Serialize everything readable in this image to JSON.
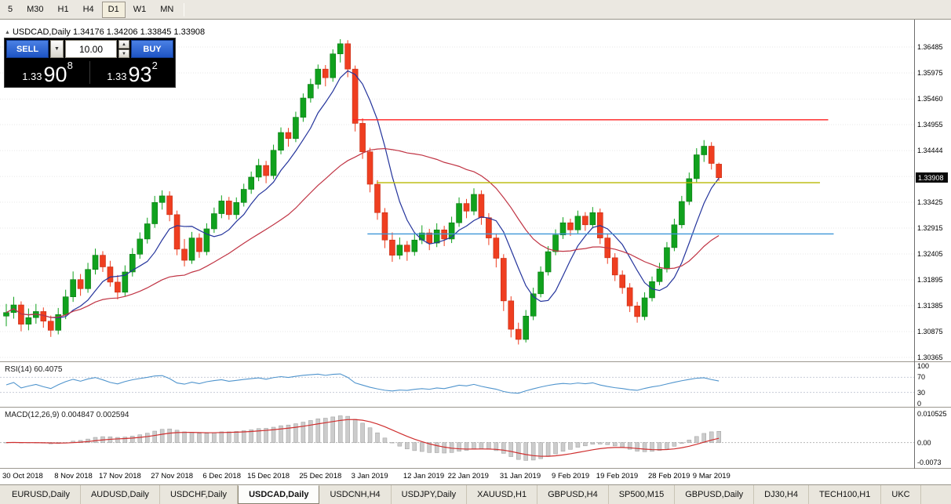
{
  "icons": {
    "title_marker": "▲",
    "dropdown": "▼",
    "spin_up": "▲",
    "spin_down": "▼"
  },
  "toolbar": {
    "timeframes": [
      {
        "label": "5",
        "active": false
      },
      {
        "label": "M30",
        "active": false
      },
      {
        "label": "H1",
        "active": false
      },
      {
        "label": "H4",
        "active": false
      },
      {
        "label": "D1",
        "active": true
      },
      {
        "label": "W1",
        "active": false
      },
      {
        "label": "MN",
        "active": false
      }
    ]
  },
  "chart_header": {
    "title": "USDCAD,Daily 1.34176 1.34206 1.33845 1.33908"
  },
  "trade_panel": {
    "sell_label": "SELL",
    "buy_label": "BUY",
    "volume": "10.00",
    "sell_price": {
      "prefix": "1.33",
      "big": "90",
      "sup": "8"
    },
    "buy_price": {
      "prefix": "1.33",
      "big": "93",
      "sup": "2"
    }
  },
  "price_scale": {
    "labels": [
      "1.36485",
      "1.35975",
      "1.35460",
      "1.34955",
      "1.34444",
      "1.33934",
      "1.33425",
      "1.32915",
      "1.32405",
      "1.31895",
      "1.31385",
      "1.30875",
      "1.30365"
    ],
    "current": "1.33908"
  },
  "rsi_panel": {
    "label": "RSI(14) 60.4075",
    "levels": [
      "100",
      "70",
      "30",
      "0"
    ],
    "color": "#4f94cd"
  },
  "macd_panel": {
    "label": "MACD(12,26,9) 0.004847 0.002594",
    "levels": [
      "0.010525",
      "0.00",
      "-0.0073"
    ],
    "max": 0.010525,
    "min": -0.0073
  },
  "time_axis": [
    {
      "i": 0,
      "label": "30 Oct 2018"
    },
    {
      "i": 7,
      "label": "8 Nov 2018"
    },
    {
      "i": 13,
      "label": "17 Nov 2018"
    },
    {
      "i": 20,
      "label": "27 Nov 2018"
    },
    {
      "i": 27,
      "label": "6 Dec 2018"
    },
    {
      "i": 33,
      "label": "15 Dec 2018"
    },
    {
      "i": 40,
      "label": "25 Dec 2018"
    },
    {
      "i": 47,
      "label": "3 Jan 2019"
    },
    {
      "i": 54,
      "label": "12 Jan 2019"
    },
    {
      "i": 60,
      "label": "22 Jan 2019"
    },
    {
      "i": 67,
      "label": "31 Jan 2019"
    },
    {
      "i": 74,
      "label": "9 Feb 2019"
    },
    {
      "i": 80,
      "label": "19 Feb 2019"
    },
    {
      "i": 87,
      "label": "28 Feb 2019"
    },
    {
      "i": 93,
      "label": "9 Mar 2019"
    }
  ],
  "chart_data": {
    "type": "candlestick",
    "title": "USDCAD,Daily",
    "last_ohlc": {
      "open": 1.34176,
      "high": 1.34206,
      "low": 1.33845,
      "close": 1.33908
    },
    "y_range": [
      1.30365,
      1.36485
    ],
    "bull_color": "#10a11d",
    "bear_color": "#ef3e20",
    "ma_fast": {
      "period": 7,
      "color": "#24349c"
    },
    "ma_slow": {
      "period": 25,
      "color": "#c03444"
    },
    "hlines": [
      {
        "price": 1.3505,
        "color": "#ff1e1e",
        "start_frac": 0.386,
        "end_frac": 0.906
      },
      {
        "price": 1.3381,
        "color": "#b8b800",
        "start_frac": 0.412,
        "end_frac": 0.897
      },
      {
        "price": 1.328,
        "color": "#3d96d8",
        "start_frac": 0.402,
        "end_frac": 0.912
      }
    ],
    "candles": [
      [
        1.3118,
        1.3142,
        1.3098,
        1.3125
      ],
      [
        1.3125,
        1.3156,
        1.3113,
        1.314
      ],
      [
        1.314,
        1.3147,
        1.3088,
        1.3102
      ],
      [
        1.3102,
        1.3133,
        1.309,
        1.3115
      ],
      [
        1.3115,
        1.3142,
        1.3103,
        1.3127
      ],
      [
        1.3127,
        1.3135,
        1.3095,
        1.3108
      ],
      [
        1.3108,
        1.3119,
        1.3077,
        1.309
      ],
      [
        1.309,
        1.3134,
        1.3082,
        1.3121
      ],
      [
        1.3121,
        1.317,
        1.3112,
        1.3156
      ],
      [
        1.3156,
        1.3206,
        1.3146,
        1.319
      ],
      [
        1.319,
        1.3201,
        1.3158,
        1.3172
      ],
      [
        1.3172,
        1.3223,
        1.3164,
        1.321
      ],
      [
        1.321,
        1.3251,
        1.32,
        1.3238
      ],
      [
        1.3238,
        1.3246,
        1.3205,
        1.3215
      ],
      [
        1.3215,
        1.3227,
        1.3176,
        1.3185
      ],
      [
        1.3185,
        1.3199,
        1.3151,
        1.3165
      ],
      [
        1.3165,
        1.3218,
        1.3157,
        1.3205
      ],
      [
        1.3205,
        1.3252,
        1.3196,
        1.324
      ],
      [
        1.324,
        1.3283,
        1.3231,
        1.327
      ],
      [
        1.327,
        1.3312,
        1.3261,
        1.33
      ],
      [
        1.33,
        1.3355,
        1.3292,
        1.3342
      ],
      [
        1.3342,
        1.3366,
        1.3328,
        1.3355
      ],
      [
        1.3355,
        1.3364,
        1.3305,
        1.3318
      ],
      [
        1.3318,
        1.3326,
        1.3238,
        1.325
      ],
      [
        1.325,
        1.327,
        1.3216,
        1.3228
      ],
      [
        1.3228,
        1.3284,
        1.3221,
        1.3272
      ],
      [
        1.3272,
        1.3281,
        1.3233,
        1.3245
      ],
      [
        1.3245,
        1.3301,
        1.3238,
        1.329
      ],
      [
        1.329,
        1.3332,
        1.3282,
        1.332
      ],
      [
        1.332,
        1.3356,
        1.3311,
        1.3345
      ],
      [
        1.3345,
        1.3353,
        1.3308,
        1.3318
      ],
      [
        1.3318,
        1.3352,
        1.3309,
        1.3342
      ],
      [
        1.3342,
        1.3379,
        1.3334,
        1.3368
      ],
      [
        1.3368,
        1.3403,
        1.3359,
        1.3392
      ],
      [
        1.3392,
        1.3428,
        1.3384,
        1.3415
      ],
      [
        1.3415,
        1.3424,
        1.338,
        1.3395
      ],
      [
        1.3395,
        1.3456,
        1.3388,
        1.3445
      ],
      [
        1.3445,
        1.349,
        1.3437,
        1.348
      ],
      [
        1.348,
        1.3489,
        1.3452,
        1.3468
      ],
      [
        1.3468,
        1.3521,
        1.3461,
        1.351
      ],
      [
        1.351,
        1.3557,
        1.3501,
        1.3548
      ],
      [
        1.3548,
        1.3586,
        1.3539,
        1.3575
      ],
      [
        1.3575,
        1.3614,
        1.3566,
        1.3605
      ],
      [
        1.3605,
        1.3613,
        1.3571,
        1.3588
      ],
      [
        1.3588,
        1.3644,
        1.358,
        1.3635
      ],
      [
        1.3635,
        1.3664,
        1.3618,
        1.3655
      ],
      [
        1.3655,
        1.3662,
        1.3589,
        1.3605
      ],
      [
        1.3605,
        1.3612,
        1.3482,
        1.3498
      ],
      [
        1.3498,
        1.3508,
        1.3428,
        1.3442
      ],
      [
        1.3442,
        1.345,
        1.3362,
        1.3378
      ],
      [
        1.3378,
        1.3386,
        1.3308,
        1.3322
      ],
      [
        1.3322,
        1.3331,
        1.3252,
        1.3268
      ],
      [
        1.3268,
        1.3283,
        1.3225,
        1.3238
      ],
      [
        1.3238,
        1.3273,
        1.323,
        1.3258
      ],
      [
        1.3258,
        1.3266,
        1.3227,
        1.3245
      ],
      [
        1.3245,
        1.3281,
        1.3237,
        1.3268
      ],
      [
        1.3268,
        1.3297,
        1.326,
        1.3282
      ],
      [
        1.3282,
        1.329,
        1.3248,
        1.3262
      ],
      [
        1.3262,
        1.3301,
        1.3254,
        1.3288
      ],
      [
        1.3288,
        1.3296,
        1.3256,
        1.327
      ],
      [
        1.327,
        1.3314,
        1.3262,
        1.3302
      ],
      [
        1.3302,
        1.3352,
        1.3294,
        1.334
      ],
      [
        1.334,
        1.3349,
        1.3311,
        1.3325
      ],
      [
        1.3325,
        1.337,
        1.3317,
        1.3358
      ],
      [
        1.3358,
        1.3366,
        1.3298,
        1.3312
      ],
      [
        1.3312,
        1.3321,
        1.3258,
        1.3272
      ],
      [
        1.3272,
        1.3281,
        1.3214,
        1.3232
      ],
      [
        1.3232,
        1.324,
        1.3128,
        1.3148
      ],
      [
        1.3148,
        1.3157,
        1.3076,
        1.3092
      ],
      [
        1.3092,
        1.3105,
        1.3062,
        1.3072
      ],
      [
        1.3072,
        1.313,
        1.3066,
        1.3118
      ],
      [
        1.3118,
        1.3174,
        1.311,
        1.3162
      ],
      [
        1.3162,
        1.3216,
        1.3155,
        1.3205
      ],
      [
        1.3205,
        1.3256,
        1.3198,
        1.3245
      ],
      [
        1.3245,
        1.3289,
        1.3238,
        1.3278
      ],
      [
        1.3278,
        1.3313,
        1.327,
        1.3302
      ],
      [
        1.3302,
        1.331,
        1.3276,
        1.3288
      ],
      [
        1.3288,
        1.3326,
        1.3281,
        1.3315
      ],
      [
        1.3315,
        1.3323,
        1.3286,
        1.3298
      ],
      [
        1.3298,
        1.3333,
        1.3291,
        1.3322
      ],
      [
        1.3322,
        1.333,
        1.326,
        1.3272
      ],
      [
        1.3272,
        1.3281,
        1.3221,
        1.3233
      ],
      [
        1.3233,
        1.3242,
        1.3187,
        1.3199
      ],
      [
        1.3199,
        1.3208,
        1.3162,
        1.3174
      ],
      [
        1.3174,
        1.3183,
        1.3126,
        1.3138
      ],
      [
        1.3138,
        1.3146,
        1.3105,
        1.3117
      ],
      [
        1.3117,
        1.3165,
        1.311,
        1.3154
      ],
      [
        1.3154,
        1.3196,
        1.3147,
        1.3186
      ],
      [
        1.3186,
        1.3223,
        1.3179,
        1.3211
      ],
      [
        1.3211,
        1.3264,
        1.3204,
        1.3253
      ],
      [
        1.3253,
        1.331,
        1.3246,
        1.3298
      ],
      [
        1.3298,
        1.3355,
        1.3291,
        1.3344
      ],
      [
        1.3344,
        1.3401,
        1.3337,
        1.3389
      ],
      [
        1.3389,
        1.3449,
        1.3382,
        1.3436
      ],
      [
        1.3436,
        1.3465,
        1.3422,
        1.3453
      ],
      [
        1.3453,
        1.3461,
        1.3407,
        1.3419
      ],
      [
        1.34176,
        1.34206,
        1.33845,
        1.33908
      ]
    ]
  },
  "tabs": {
    "items": [
      {
        "label": "EURUSD,Daily",
        "active": false
      },
      {
        "label": "AUDUSD,Daily",
        "active": false
      },
      {
        "label": "USDCHF,Daily",
        "active": false
      },
      {
        "label": "USDCAD,Daily",
        "active": true
      },
      {
        "label": "USDCNH,H4",
        "active": false
      },
      {
        "label": "USDJPY,Daily",
        "active": false
      },
      {
        "label": "XAUUSD,H1",
        "active": false
      },
      {
        "label": "GBPUSD,H4",
        "active": false
      },
      {
        "label": "SP500,M15",
        "active": false
      },
      {
        "label": "GBPUSD,Daily",
        "active": false
      },
      {
        "label": "DJ30,H4",
        "active": false
      },
      {
        "label": "TECH100,H1",
        "active": false
      },
      {
        "label": "UKC",
        "active": false
      }
    ]
  }
}
